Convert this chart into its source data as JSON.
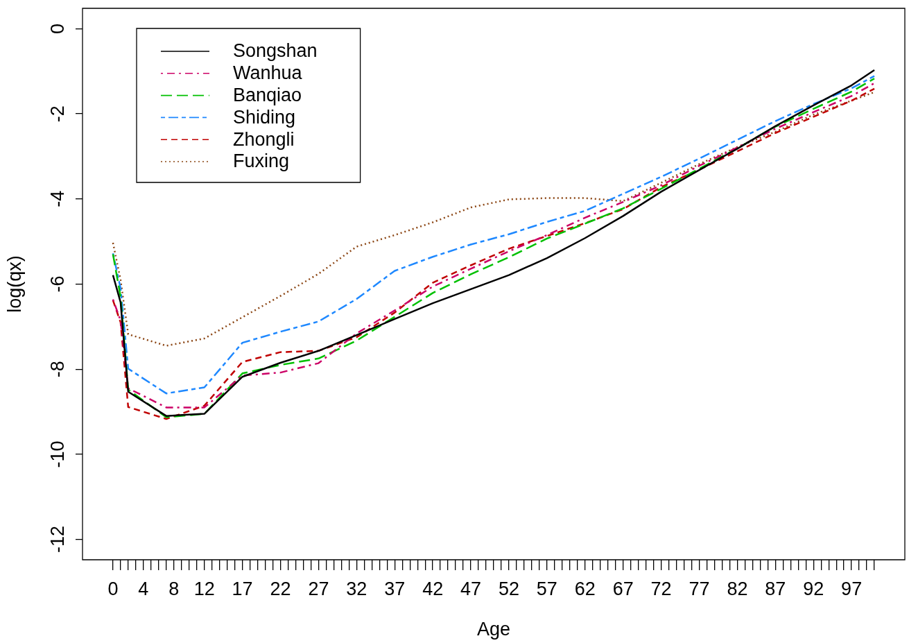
{
  "chart_data": {
    "type": "line",
    "xlabel": "Age",
    "ylabel": "log(qx)",
    "legend": "top left",
    "x": [
      0,
      1,
      2,
      7,
      12,
      17,
      22,
      27,
      32,
      37,
      42,
      47,
      52,
      57,
      62,
      67,
      72,
      77,
      82,
      87,
      92,
      97,
      100
    ],
    "xlim": [
      -4,
      104
    ],
    "xticks": [
      0,
      {
        "value": 1,
        "label": null
      },
      {
        "value": 2,
        "label": null
      },
      {
        "value": 3,
        "label": null
      },
      4,
      {
        "value": 5,
        "label": null
      },
      {
        "value": 6,
        "label": null
      },
      {
        "value": 7,
        "label": null
      },
      8,
      {
        "value": 9,
        "label": null
      },
      {
        "value": 10,
        "label": null
      },
      {
        "value": 11,
        "label": null
      },
      12,
      {
        "value": 13,
        "label": null
      },
      {
        "value": 14,
        "label": null
      },
      {
        "value": 15,
        "label": null
      },
      {
        "value": 16,
        "label": null
      },
      17,
      {
        "value": 18,
        "label": null
      },
      {
        "value": 19,
        "label": null
      },
      {
        "value": 20,
        "label": null
      },
      {
        "value": 21,
        "label": null
      },
      22,
      {
        "value": 23,
        "label": null
      },
      {
        "value": 24,
        "label": null
      },
      {
        "value": 25,
        "label": null
      },
      {
        "value": 26,
        "label": null
      },
      27,
      {
        "value": 28,
        "label": null
      },
      {
        "value": 29,
        "label": null
      },
      {
        "value": 30,
        "label": null
      },
      {
        "value": 31,
        "label": null
      },
      32,
      {
        "value": 33,
        "label": null
      },
      {
        "value": 34,
        "label": null
      },
      {
        "value": 35,
        "label": null
      },
      {
        "value": 36,
        "label": null
      },
      37,
      {
        "value": 38,
        "label": null
      },
      {
        "value": 39,
        "label": null
      },
      {
        "value": 40,
        "label": null
      },
      {
        "value": 41,
        "label": null
      },
      42,
      {
        "value": 43,
        "label": null
      },
      {
        "value": 44,
        "label": null
      },
      {
        "value": 45,
        "label": null
      },
      {
        "value": 46,
        "label": null
      },
      47,
      {
        "value": 48,
        "label": null
      },
      {
        "value": 49,
        "label": null
      },
      {
        "value": 50,
        "label": null
      },
      {
        "value": 51,
        "label": null
      },
      52,
      {
        "value": 53,
        "label": null
      },
      {
        "value": 54,
        "label": null
      },
      {
        "value": 55,
        "label": null
      },
      {
        "value": 56,
        "label": null
      },
      57,
      {
        "value": 58,
        "label": null
      },
      {
        "value": 59,
        "label": null
      },
      {
        "value": 60,
        "label": null
      },
      {
        "value": 61,
        "label": null
      },
      62,
      {
        "value": 63,
        "label": null
      },
      {
        "value": 64,
        "label": null
      },
      {
        "value": 65,
        "label": null
      },
      {
        "value": 66,
        "label": null
      },
      67,
      {
        "value": 68,
        "label": null
      },
      {
        "value": 69,
        "label": null
      },
      {
        "value": 70,
        "label": null
      },
      {
        "value": 71,
        "label": null
      },
      72,
      {
        "value": 73,
        "label": null
      },
      {
        "value": 74,
        "label": null
      },
      {
        "value": 75,
        "label": null
      },
      {
        "value": 76,
        "label": null
      },
      77,
      {
        "value": 78,
        "label": null
      },
      {
        "value": 79,
        "label": null
      },
      {
        "value": 80,
        "label": null
      },
      {
        "value": 81,
        "label": null
      },
      82,
      {
        "value": 83,
        "label": null
      },
      {
        "value": 84,
        "label": null
      },
      {
        "value": 85,
        "label": null
      },
      {
        "value": 86,
        "label": null
      },
      87,
      {
        "value": 88,
        "label": null
      },
      {
        "value": 89,
        "label": null
      },
      {
        "value": 90,
        "label": null
      },
      {
        "value": 91,
        "label": null
      },
      92,
      {
        "value": 93,
        "label": null
      },
      {
        "value": 94,
        "label": null
      },
      {
        "value": 95,
        "label": null
      },
      {
        "value": 96,
        "label": null
      },
      97,
      {
        "value": 98,
        "label": null
      },
      {
        "value": 99,
        "label": null
      },
      {
        "value": 100,
        "label": null
      }
    ],
    "ylim": [
      -12.48,
      0.48
    ],
    "yticks": [
      -12,
      -10,
      -8,
      -6,
      -4,
      -2,
      0
    ],
    "series": [
      {
        "name": "Songshan",
        "color": "#000000",
        "line_style": "solid",
        "values": [
          -5.79,
          -6.43,
          -8.53,
          -9.1,
          -9.05,
          -8.18,
          -7.85,
          -7.57,
          -7.2,
          -6.82,
          -6.45,
          -6.12,
          -5.79,
          -5.39,
          -4.92,
          -4.4,
          -3.83,
          -3.32,
          -2.82,
          -2.29,
          -1.8,
          -1.33,
          -0.97
        ]
      },
      {
        "name": "Wanhua",
        "color": "#cc0066",
        "line_style": "dashed",
        "values": [
          -6.36,
          -6.86,
          -8.45,
          -8.9,
          -8.9,
          -8.15,
          -8.08,
          -7.86,
          -7.16,
          -6.62,
          -6.06,
          -5.64,
          -5.23,
          -4.85,
          -4.44,
          -4.07,
          -3.68,
          -3.22,
          -2.79,
          -2.35,
          -1.96,
          -1.58,
          -1.28
        ]
      },
      {
        "name": "Banqiao",
        "color": "#00c000",
        "line_style": "dashed",
        "values": [
          -5.3,
          -6.3,
          -8.48,
          -9.13,
          -9.05,
          -8.1,
          -7.9,
          -7.75,
          -7.33,
          -6.77,
          -6.21,
          -5.77,
          -5.37,
          -4.93,
          -4.58,
          -4.22,
          -3.76,
          -3.29,
          -2.81,
          -2.3,
          -1.88,
          -1.48,
          -1.17
        ]
      },
      {
        "name": "Shiding",
        "color": "#1e88ff",
        "line_style": "dashed",
        "values": [
          -5.28,
          -6.1,
          -7.99,
          -8.57,
          -8.43,
          -7.38,
          -7.12,
          -6.88,
          -6.35,
          -5.69,
          -5.36,
          -5.07,
          -4.83,
          -4.54,
          -4.28,
          -3.88,
          -3.48,
          -3.05,
          -2.61,
          -2.17,
          -1.77,
          -1.4,
          -1.11
        ]
      },
      {
        "name": "Zhongli",
        "color": "#c00000",
        "line_style": "dashed",
        "values": [
          -6.38,
          -6.9,
          -8.89,
          -9.17,
          -8.86,
          -7.83,
          -7.6,
          -7.57,
          -7.25,
          -6.67,
          -5.97,
          -5.56,
          -5.17,
          -4.87,
          -4.57,
          -4.24,
          -3.72,
          -3.31,
          -2.88,
          -2.45,
          -2.07,
          -1.69,
          -1.41
        ]
      },
      {
        "name": "Fuxing",
        "color": "#8b4513",
        "line_style": "dotted",
        "values": [
          -5.03,
          -5.9,
          -7.18,
          -7.45,
          -7.28,
          -6.78,
          -6.28,
          -5.76,
          -5.12,
          -4.85,
          -4.55,
          -4.2,
          -4.01,
          -3.98,
          -3.98,
          -4.05,
          -3.62,
          -3.18,
          -2.78,
          -2.42,
          -2.02,
          -1.69,
          -1.49
        ]
      }
    ]
  }
}
